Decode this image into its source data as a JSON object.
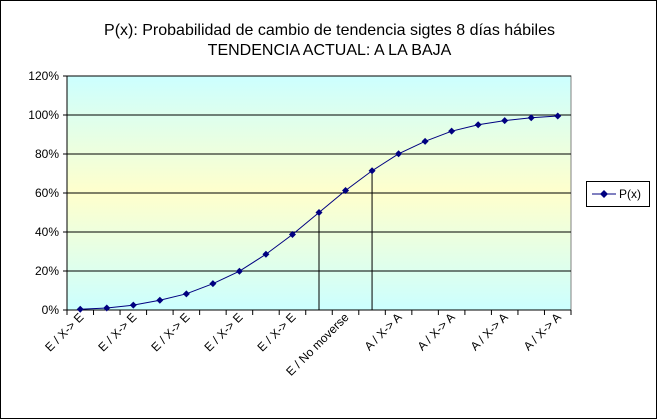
{
  "chart_data": {
    "type": "line",
    "title": "P(x): Probabilidad de cambio de tendencia sigtes 8 días hábiles",
    "subtitle": "TENDENCIA ACTUAL: A LA BAJA",
    "xlabel": "",
    "ylabel": "",
    "ylim": [
      0,
      1.2
    ],
    "y_ticks": [
      "0%",
      "20%",
      "40%",
      "60%",
      "80%",
      "100%",
      "120%"
    ],
    "x_tick_labels": [
      "E / X-> E",
      "E / X-> E",
      "E / X-> E",
      "E / X-> E",
      "E / X-> E",
      "E / No moverse",
      "A / X-> A",
      "A / X-> A",
      "A / X-> A",
      "A / X-> A"
    ],
    "grid": "horizontal",
    "legend_position": "right",
    "series": [
      {
        "name": "P(x)",
        "color": "#000080",
        "values": [
          0.004,
          0.01,
          0.025,
          0.05,
          0.083,
          0.135,
          0.199,
          0.286,
          0.387,
          0.5,
          0.613,
          0.714,
          0.801,
          0.865,
          0.917,
          0.95,
          0.971,
          0.986,
          0.995
        ]
      }
    ],
    "reference_lines_at_points": [
      9,
      11
    ],
    "background_bands": [
      "#FFFFCC",
      "#CCFFFF"
    ]
  }
}
